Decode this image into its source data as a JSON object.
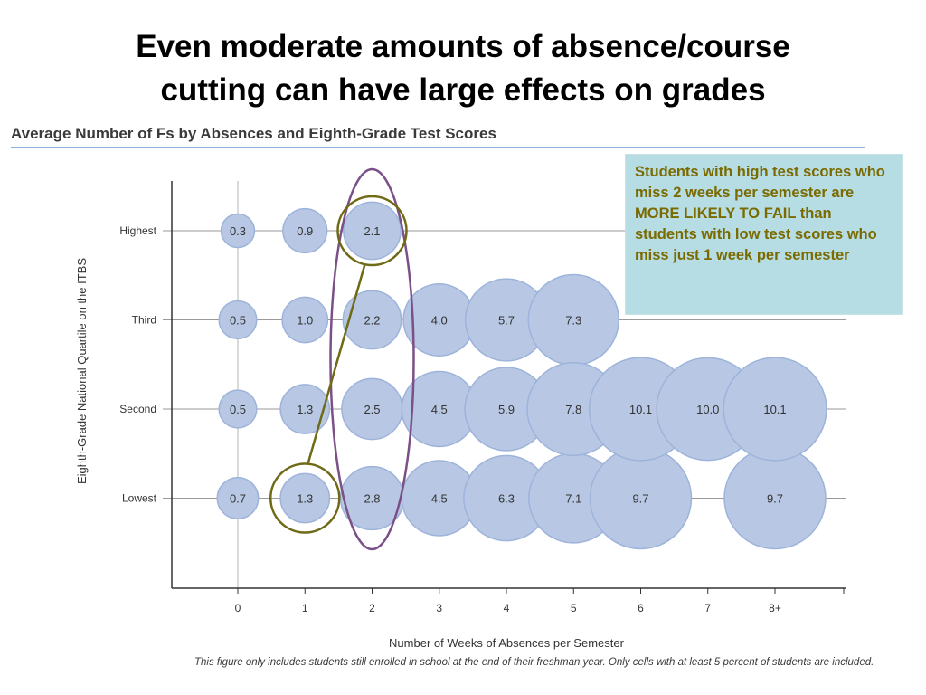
{
  "slide": {
    "title_line1": "Even moderate amounts of absence/course",
    "title_line2": "cutting can have large effects on grades"
  },
  "callout": {
    "text": "Students with high test scores who miss 2 weeks per semester are MORE LIKELY TO FAIL than students with low test scores who miss just 1 week per semester"
  },
  "footnote": "This figure only includes students still enrolled in school at the end of their freshman year. Only cells with at least 5 percent of students are included.",
  "colors": {
    "bubble_fill": "#b8c8e4",
    "bubble_stroke": "#9db3da",
    "purple_highlight": "#7b4f87",
    "olive_highlight": "#6e6a16",
    "callout_bg": "#b6dde3",
    "callout_text": "#7a6a00"
  },
  "chart_data": {
    "type": "bubble",
    "title": "Average Number of Fs by Absences and Eighth-Grade Test Scores",
    "xlabel": "Number of Weeks of Absences per Semester",
    "ylabel": "Eighth-Grade National Quartile on the ITBS",
    "x_categories": [
      "0",
      "1",
      "2",
      "3",
      "4",
      "5",
      "6",
      "7",
      "8+"
    ],
    "y_categories": [
      "Highest",
      "Third",
      "Second",
      "Lowest"
    ],
    "grid": "horizontal",
    "series": [
      {
        "name": "Highest",
        "values": [
          0.3,
          0.9,
          2.1,
          null,
          null,
          null,
          null,
          null,
          null
        ],
        "labels": [
          "0.3",
          "0.9",
          "2.1",
          "",
          "",
          "",
          "",
          "",
          ""
        ]
      },
      {
        "name": "Third",
        "values": [
          0.5,
          1.0,
          2.2,
          4.0,
          5.7,
          7.3,
          null,
          null,
          null
        ],
        "labels": [
          "0.5",
          "1.0",
          "2.2",
          "4.0",
          "5.7",
          "7.3",
          "",
          "",
          ""
        ]
      },
      {
        "name": "Second",
        "values": [
          0.5,
          1.3,
          2.5,
          4.5,
          5.9,
          7.8,
          10.1,
          10.0,
          10.1
        ],
        "labels": [
          "0.5",
          "1.3",
          "2.5",
          "4.5",
          "5.9",
          "7.8",
          "10.1",
          "10.0",
          "10.1"
        ]
      },
      {
        "name": "Lowest",
        "values": [
          0.7,
          1.3,
          2.8,
          4.5,
          6.3,
          7.1,
          9.7,
          null,
          9.7
        ],
        "labels": [
          "0.7",
          "1.3",
          "2.8",
          "4.5",
          "6.3",
          "7.1",
          "9.7",
          "",
          "9.7"
        ]
      }
    ],
    "highlights": [
      {
        "shape": "ellipse",
        "around_column": "2",
        "color": "purple"
      },
      {
        "shape": "circle",
        "around": {
          "row": "Highest",
          "column": "2"
        },
        "color": "olive"
      },
      {
        "shape": "circle",
        "around": {
          "row": "Lowest",
          "column": "1"
        },
        "color": "olive"
      }
    ]
  }
}
